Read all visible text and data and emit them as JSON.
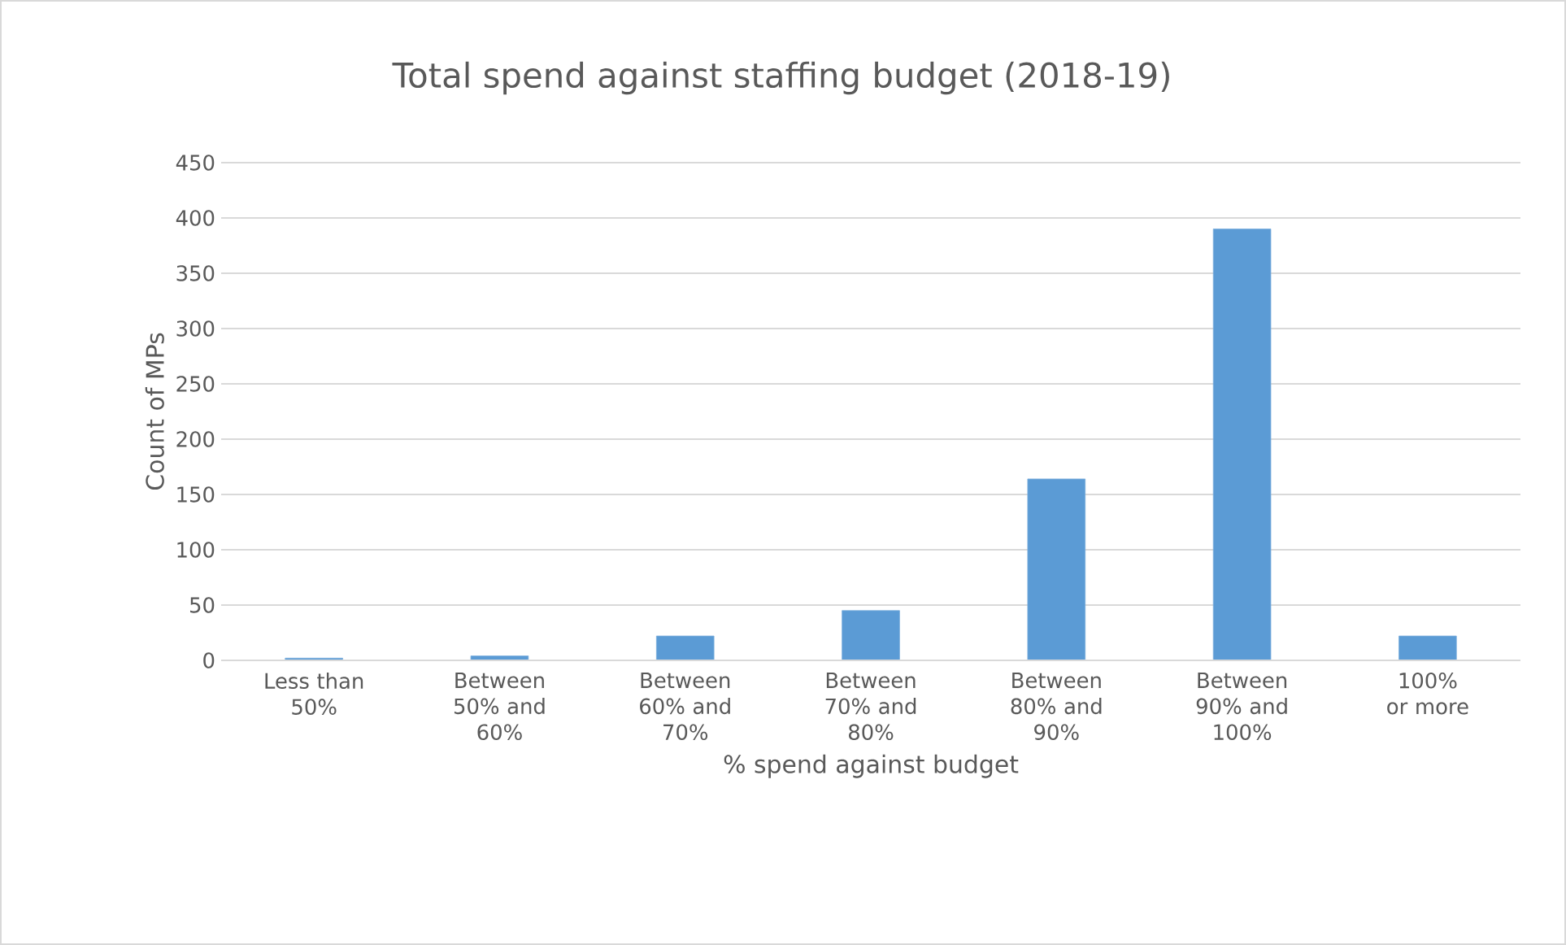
{
  "chart_data": {
    "type": "bar",
    "title": "Total spend against staffing budget (2018-19)",
    "xlabel": "% spend against budget",
    "ylabel": "Count of MPs",
    "categories": [
      "Less than 50%",
      "Between 50% and 60%",
      "Between 60% and 70%",
      "Between 70% and 80%",
      "Between 80% and 90%",
      "Between 90% and 100%",
      "100% or more"
    ],
    "values": [
      2,
      4,
      22,
      45,
      164,
      390,
      22
    ],
    "color": "#5b9bd5",
    "ylim": [
      0,
      450
    ],
    "yticks": [
      0,
      50,
      100,
      150,
      200,
      250,
      300,
      350,
      400,
      450
    ],
    "grid": "y"
  }
}
